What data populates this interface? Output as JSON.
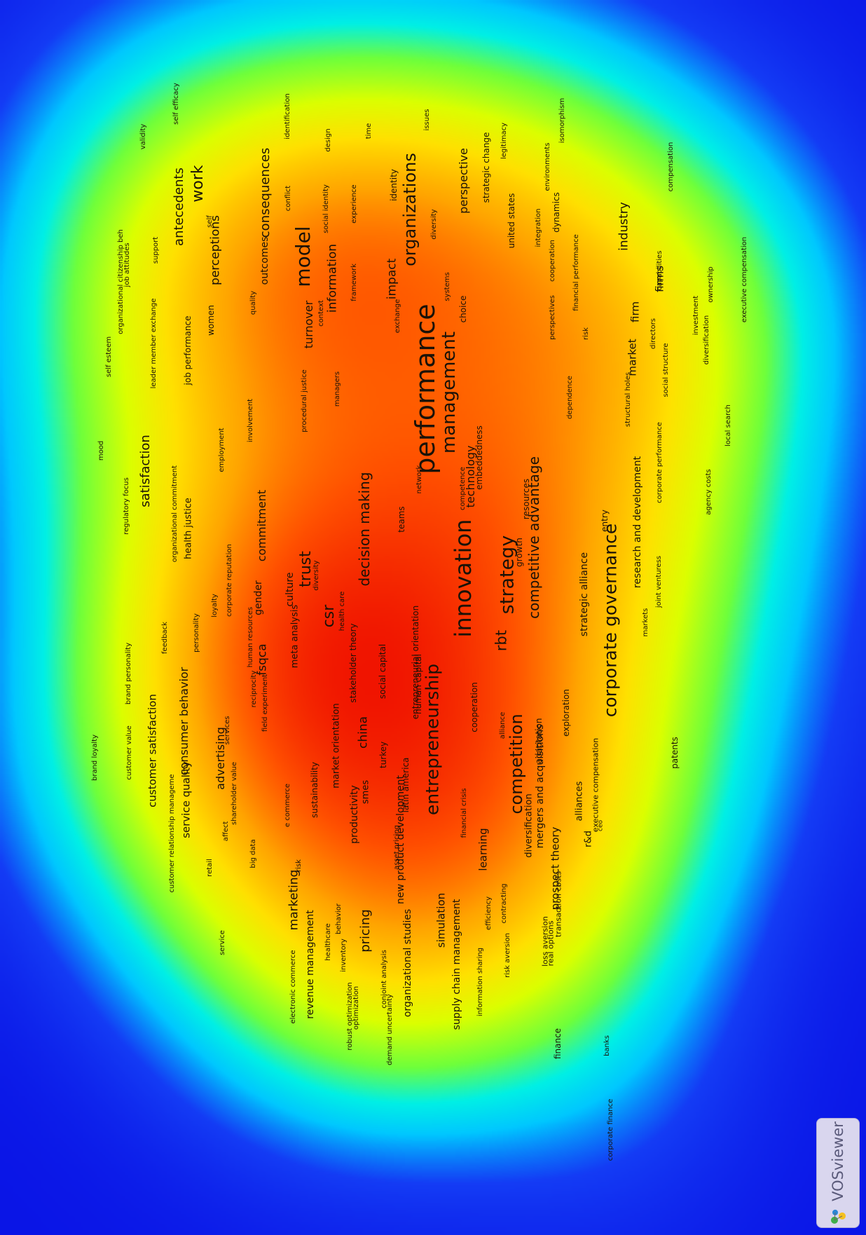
{
  "app": {
    "name": "VOSviewer"
  },
  "colors": {
    "background": "#0a14e6",
    "low": "#00e5ff",
    "mid": "#7fff00",
    "high": "#ffe600",
    "peak": "#ff2a00"
  },
  "terms": [
    {
      "label": "performance",
      "weight": 1.0
    },
    {
      "label": "management",
      "weight": 0.55
    },
    {
      "label": "innovation",
      "weight": 0.8
    },
    {
      "label": "strategy",
      "weight": 0.6
    },
    {
      "label": "model",
      "weight": 0.6
    },
    {
      "label": "work",
      "weight": 0.45
    },
    {
      "label": "organizations",
      "weight": 0.5
    },
    {
      "label": "entrepreneurship",
      "weight": 0.6
    },
    {
      "label": "corporate governance",
      "weight": 0.55
    },
    {
      "label": "competition",
      "weight": 0.5
    },
    {
      "label": "csr",
      "weight": 0.5
    },
    {
      "label": "trust",
      "weight": 0.45
    },
    {
      "label": "rbt",
      "weight": 0.45
    },
    {
      "label": "satisfaction",
      "weight": 0.42
    },
    {
      "label": "decision making",
      "weight": 0.42
    },
    {
      "label": "competitive advantage",
      "weight": 0.42
    },
    {
      "label": "consequences",
      "weight": 0.4
    },
    {
      "label": "antecedents",
      "weight": 0.4
    },
    {
      "label": "perceptions",
      "weight": 0.38
    },
    {
      "label": "industry",
      "weight": 0.38
    },
    {
      "label": "impact",
      "weight": 0.38
    },
    {
      "label": "information",
      "weight": 0.35
    },
    {
      "label": "perspective",
      "weight": 0.35
    },
    {
      "label": "turnover",
      "weight": 0.35
    },
    {
      "label": "outcomes",
      "weight": 0.3
    },
    {
      "label": "commitment",
      "weight": 0.35
    },
    {
      "label": "technology",
      "weight": 0.35
    },
    {
      "label": "pricing",
      "weight": 0.4
    },
    {
      "label": "marketing",
      "weight": 0.38
    },
    {
      "label": "china",
      "weight": 0.38
    },
    {
      "label": "fsqca",
      "weight": 0.36
    },
    {
      "label": "advertising",
      "weight": 0.35
    },
    {
      "label": "consumer behavior",
      "weight": 0.33
    },
    {
      "label": "customer satisfaction",
      "weight": 0.3
    },
    {
      "label": "service quality",
      "weight": 0.3
    },
    {
      "label": "learning",
      "weight": 0.3
    },
    {
      "label": "simulation",
      "weight": 0.3
    },
    {
      "label": "productivity",
      "weight": 0.3
    },
    {
      "label": "new product development",
      "weight": 0.3
    },
    {
      "label": "supply chain management",
      "weight": 0.3
    },
    {
      "label": "organizational studies",
      "weight": 0.3
    },
    {
      "label": "revenue management",
      "weight": 0.3
    },
    {
      "label": "mergers and acquisitions",
      "weight": 0.3
    },
    {
      "label": "prospect theory",
      "weight": 0.3
    },
    {
      "label": "strategic alliance",
      "weight": 0.3
    },
    {
      "label": "research and development",
      "weight": 0.3
    },
    {
      "label": "culture",
      "weight": 0.3
    },
    {
      "label": "market",
      "weight": 0.3
    },
    {
      "label": "firm",
      "weight": 0.3
    },
    {
      "label": "firms",
      "weight": 0.3
    },
    {
      "label": "market orientation",
      "weight": 0.28
    },
    {
      "label": "sustainability",
      "weight": 0.26
    },
    {
      "label": "meta analysis",
      "weight": 0.26
    },
    {
      "label": "smes",
      "weight": 0.26
    },
    {
      "label": "diversification",
      "weight": 0.26
    },
    {
      "label": "social capital",
      "weight": 0.25
    },
    {
      "label": "cooperation",
      "weight": 0.22
    },
    {
      "label": "growth",
      "weight": 0.25
    },
    {
      "label": "resources",
      "weight": 0.25
    },
    {
      "label": "human capital",
      "weight": 0.25
    },
    {
      "label": "alliances",
      "weight": 0.25
    },
    {
      "label": "gender",
      "weight": 0.28
    },
    {
      "label": "health justice",
      "weight": 0.26
    },
    {
      "label": "job performance",
      "weight": 0.26
    },
    {
      "label": "women",
      "weight": 0.25
    },
    {
      "label": "embeddedness",
      "weight": 0.25
    },
    {
      "label": "teams",
      "weight": 0.25
    },
    {
      "label": "choice",
      "weight": 0.25
    },
    {
      "label": "identity",
      "weight": 0.25
    },
    {
      "label": "united states",
      "weight": 0.25
    },
    {
      "label": "dynamics",
      "weight": 0.25
    },
    {
      "label": "entry",
      "weight": 0.25
    },
    {
      "label": "patents",
      "weight": 0.25
    },
    {
      "label": "finance",
      "weight": 0.25
    },
    {
      "label": "strategic change",
      "weight": 0.22
    },
    {
      "label": "adaptation",
      "weight": 0.22
    },
    {
      "label": "stakeholder theory",
      "weight": 0.22
    },
    {
      "label": "latin america",
      "weight": 0.22
    },
    {
      "label": "entrepreneurial orientation",
      "weight": 0.2
    },
    {
      "label": "turkey",
      "weight": 0.22
    },
    {
      "label": "exploration",
      "weight": 0.22
    },
    {
      "label": "alliance",
      "weight": 0.18
    },
    {
      "label": "financial crisis",
      "weight": 0.18
    },
    {
      "label": "executive compensation",
      "weight": 0.2
    },
    {
      "label": "r&d",
      "weight": 0.22
    },
    {
      "label": "ceo",
      "weight": 0.16
    },
    {
      "label": "transaction costs",
      "weight": 0.2
    },
    {
      "label": "loss aversion",
      "weight": 0.2
    },
    {
      "label": "real options",
      "weight": 0.2
    },
    {
      "label": "risk aversion",
      "weight": 0.18
    },
    {
      "label": "contracting",
      "weight": 0.18
    },
    {
      "label": "efficiency",
      "weight": 0.18
    },
    {
      "label": "information sharing",
      "weight": 0.16
    },
    {
      "label": "conjoint analysis",
      "weight": 0.16
    },
    {
      "label": "inventory",
      "weight": 0.18
    },
    {
      "label": "healthcare",
      "weight": 0.18
    },
    {
      "label": "behavior",
      "weight": 0.16
    },
    {
      "label": "electronic commerce",
      "weight": 0.18
    },
    {
      "label": "optimization",
      "weight": 0.18
    },
    {
      "label": "robust optimization",
      "weight": 0.16
    },
    {
      "label": "demand uncertainty",
      "weight": 0.16
    },
    {
      "label": "asset pricing",
      "weight": 0.16
    },
    {
      "label": "risk",
      "weight": 0.2
    },
    {
      "label": "big data",
      "weight": 0.2
    },
    {
      "label": "e commerce",
      "weight": 0.18
    },
    {
      "label": "field experiment",
      "weight": 0.18
    },
    {
      "label": "reciprocity",
      "weight": 0.18
    },
    {
      "label": "human resources",
      "weight": 0.16
    },
    {
      "label": "health care",
      "weight": 0.18
    },
    {
      "label": "diversity",
      "weight": 0.18
    },
    {
      "label": "shareholder value",
      "weight": 0.16
    },
    {
      "label": "services",
      "weight": 0.16
    },
    {
      "label": "affect",
      "weight": 0.16
    },
    {
      "label": "retail",
      "weight": 0.16
    },
    {
      "label": "service",
      "weight": 0.16
    },
    {
      "label": "customer relationship manageme",
      "weight": 0.16
    },
    {
      "label": "customer value",
      "weight": 0.16
    },
    {
      "label": "brand loyalty",
      "weight": 0.18
    },
    {
      "label": "brand personality",
      "weight": 0.16
    },
    {
      "label": "loyalty",
      "weight": 0.18
    },
    {
      "label": "personality",
      "weight": 0.2
    },
    {
      "label": "corporate reputation",
      "weight": 0.18
    },
    {
      "label": "feedback",
      "weight": 0.16
    },
    {
      "label": "organizational commitment",
      "weight": 0.18
    },
    {
      "label": "regulatory focus",
      "weight": 0.16
    },
    {
      "label": "mood",
      "weight": 0.16
    },
    {
      "label": "employment",
      "weight": 0.16
    },
    {
      "label": "involvement",
      "weight": 0.18
    },
    {
      "label": "self esteem",
      "weight": 0.16
    },
    {
      "label": "leader member exchange",
      "weight": 0.18
    },
    {
      "label": "procedural justice",
      "weight": 0.18
    },
    {
      "label": "network",
      "weight": 0.18
    },
    {
      "label": "competence",
      "weight": 0.16
    },
    {
      "label": "managers",
      "weight": 0.18
    },
    {
      "label": "organizational citizenship beh",
      "weight": 0.18
    },
    {
      "label": "job attitudes",
      "weight": 0.18
    },
    {
      "label": "support",
      "weight": 0.16
    },
    {
      "label": "self",
      "weight": 0.16
    },
    {
      "label": "validity",
      "weight": 0.16
    },
    {
      "label": "self efficacy",
      "weight": 0.16
    },
    {
      "label": "quality",
      "weight": 0.18
    },
    {
      "label": "context",
      "weight": 0.18
    },
    {
      "label": "conflict",
      "weight": 0.2
    },
    {
      "label": "social identity",
      "weight": 0.16
    },
    {
      "label": "identification",
      "weight": 0.16
    },
    {
      "label": "design",
      "weight": 0.16
    },
    {
      "label": "framework",
      "weight": 0.16
    },
    {
      "label": "experience",
      "weight": 0.16
    },
    {
      "label": "exchange",
      "weight": 0.16
    },
    {
      "label": "time",
      "weight": 0.16
    },
    {
      "label": "diversity",
      "weight": 0.16
    },
    {
      "label": "systems",
      "weight": 0.16
    },
    {
      "label": "issues",
      "weight": 0.16
    },
    {
      "label": "integration",
      "weight": 0.18
    },
    {
      "label": "environments",
      "weight": 0.18
    },
    {
      "label": "legitimacy",
      "weight": 0.16
    },
    {
      "label": "isomorphism",
      "weight": 0.16
    },
    {
      "label": "perspectives",
      "weight": 0.18
    },
    {
      "label": "financial performance",
      "weight": 0.18
    },
    {
      "label": "cooperation",
      "weight": 0.18
    },
    {
      "label": "risk",
      "weight": 0.16
    },
    {
      "label": "directors",
      "weight": 0.18
    },
    {
      "label": "capabilities",
      "weight": 0.18
    },
    {
      "label": "compensation",
      "weight": 0.16
    },
    {
      "label": "investment",
      "weight": 0.16
    },
    {
      "label": "diversification",
      "weight": 0.18
    },
    {
      "label": "ownership",
      "weight": 0.18
    },
    {
      "label": "executive compensation",
      "weight": 0.18
    },
    {
      "label": "social structure",
      "weight": 0.16
    },
    {
      "label": "dependence",
      "weight": 0.16
    },
    {
      "label": "structural holes",
      "weight": 0.16
    },
    {
      "label": "local search",
      "weight": 0.16
    },
    {
      "label": "corporate performance",
      "weight": 0.16
    },
    {
      "label": "agency costs",
      "weight": 0.16
    },
    {
      "label": "markets",
      "weight": 0.18
    },
    {
      "label": "joint venturess",
      "weight": 0.18
    },
    {
      "label": "banks",
      "weight": 0.16
    },
    {
      "label": "corporate finance",
      "weight": 0.16
    }
  ]
}
